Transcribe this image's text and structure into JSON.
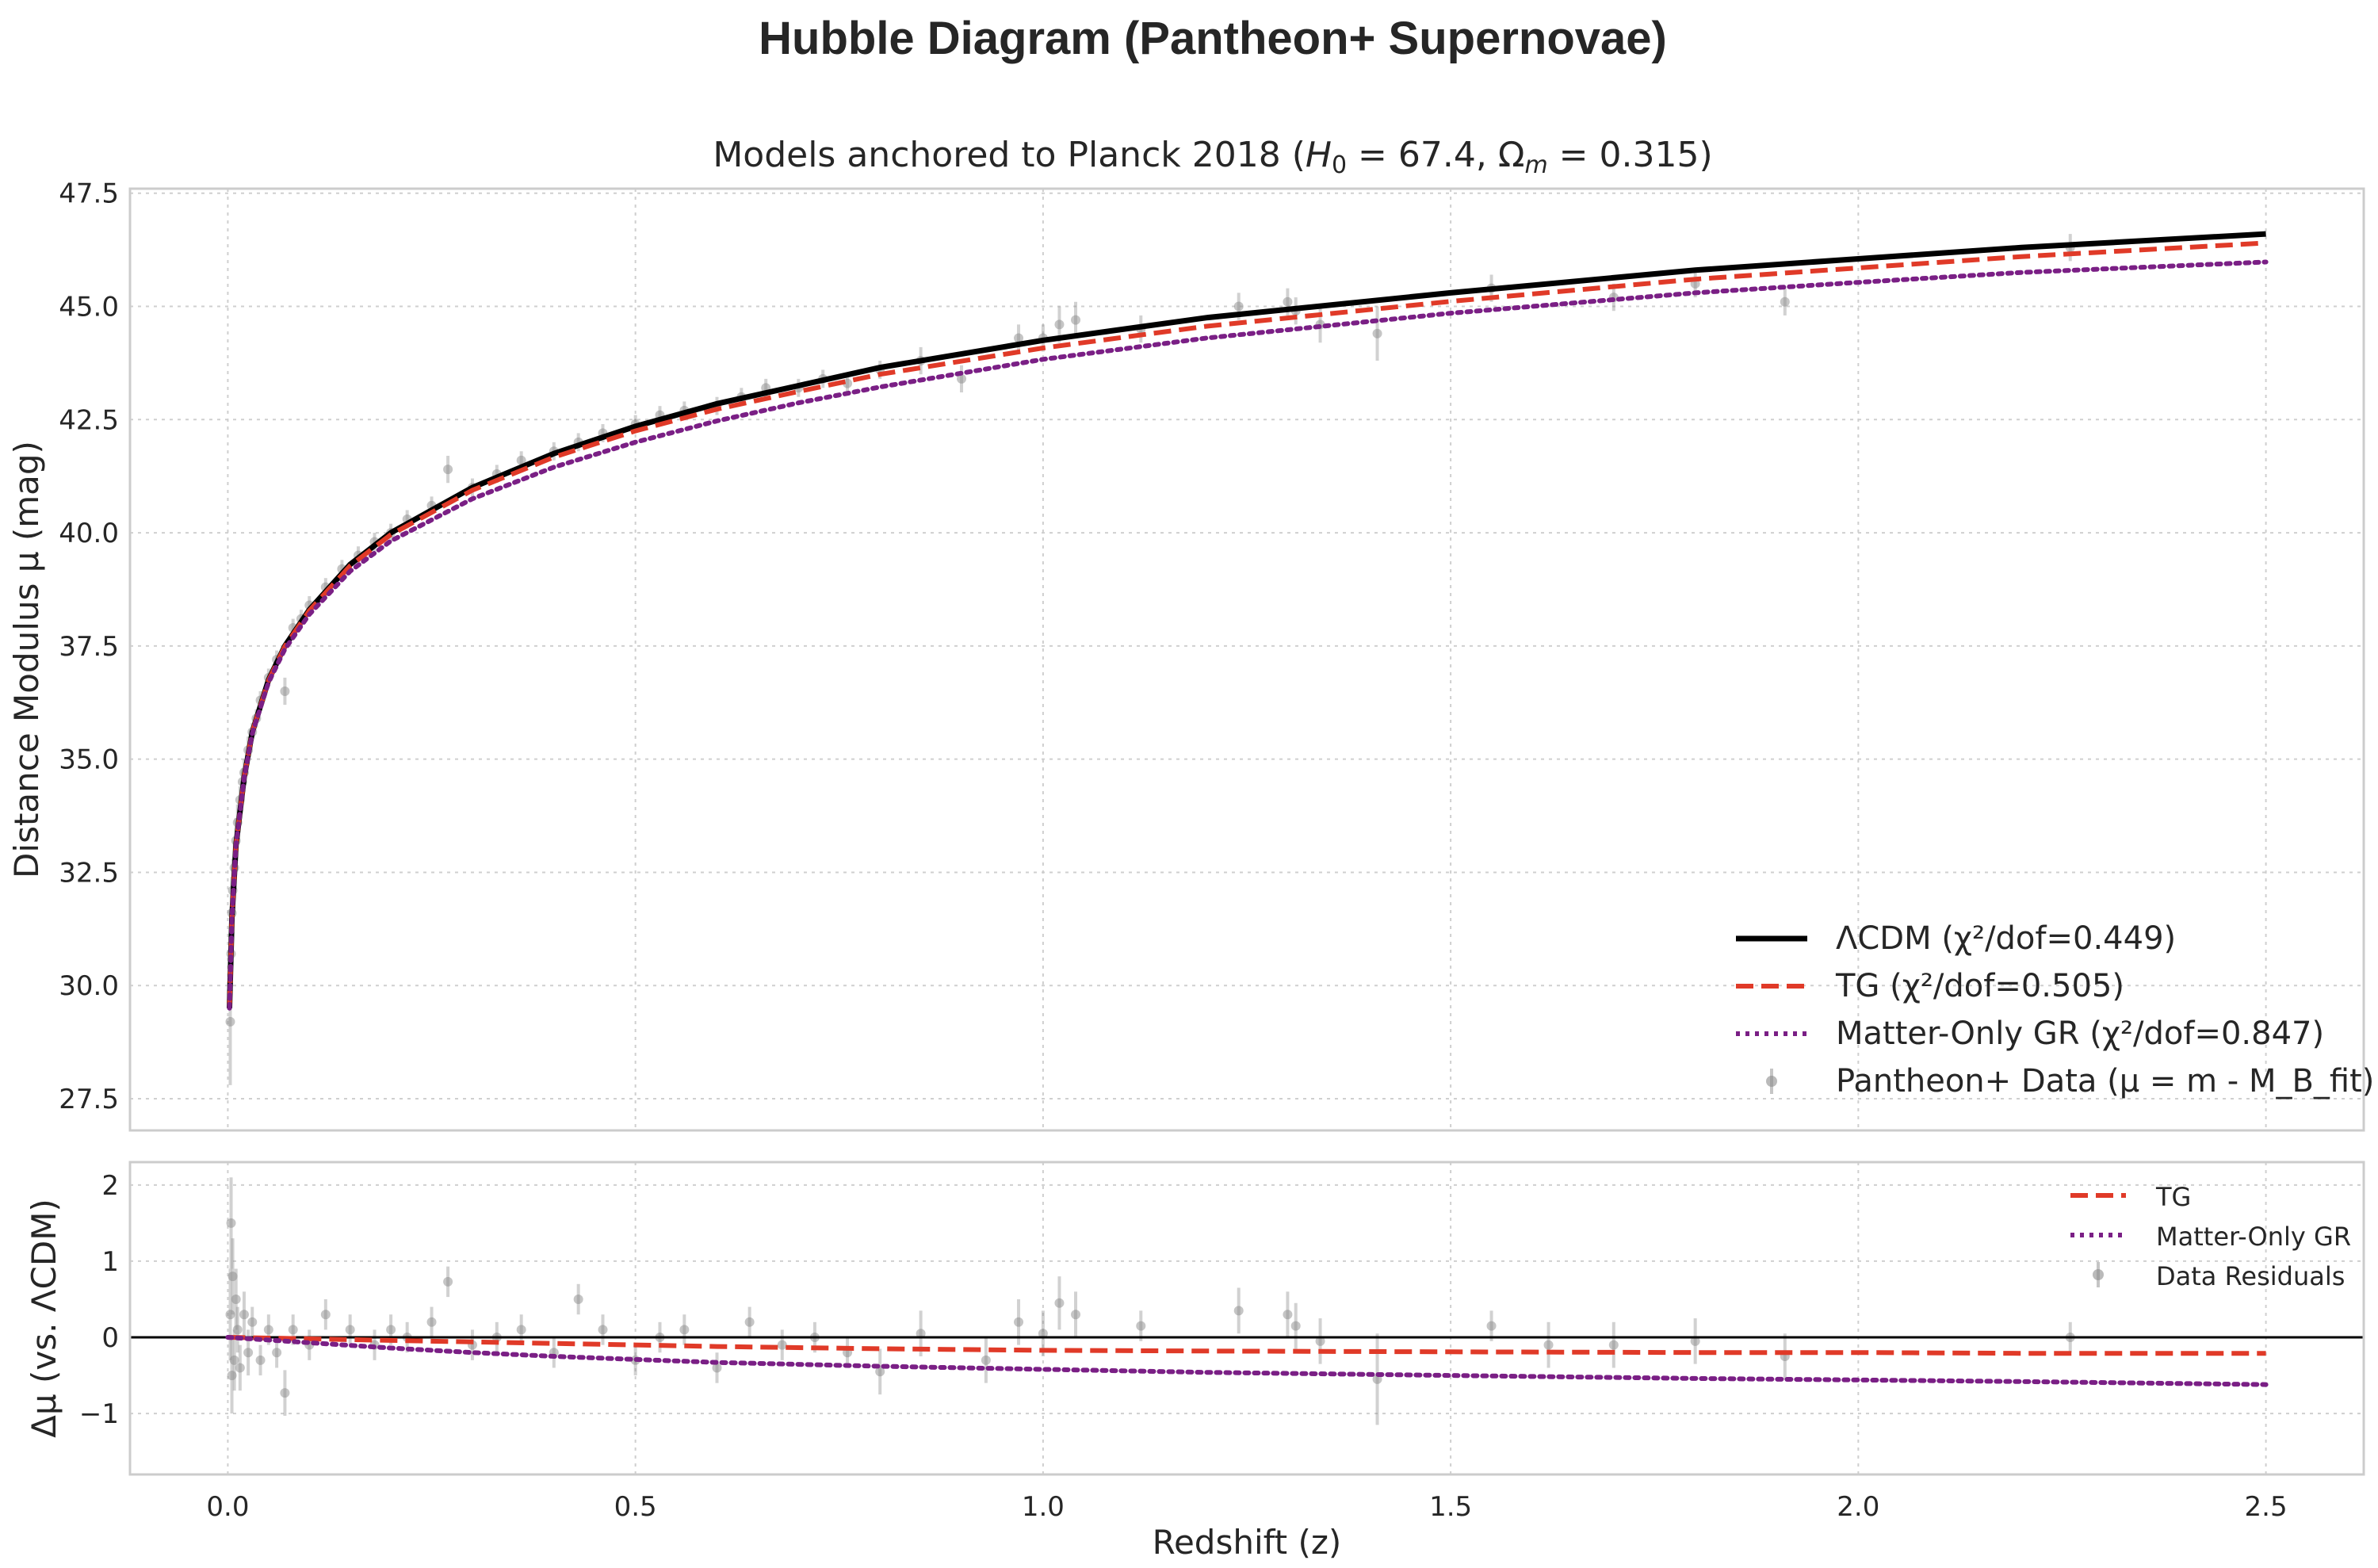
{
  "figure": {
    "suptitle": "Hubble Diagram (Pantheon+ Supernovae)",
    "subtitle_prefix": "Models anchored to Planck 2018 (",
    "subtitle_h0_symbol": "H",
    "subtitle_h0_sub": "0",
    "subtitle_h0_value": " = 67.4, ",
    "subtitle_om_symbol": "Ω",
    "subtitle_om_sub": "m",
    "subtitle_om_value": " = 0.315)"
  },
  "colors": {
    "lcdm": "#000000",
    "tg": "#e03a28",
    "matter": "#7a1f85",
    "data": "#8c8c8c",
    "grid": "#cfcfcf",
    "spine": "#cccccc"
  },
  "chart_data": [
    {
      "type": "line",
      "panel": "main",
      "ylabel": "Distance Modulus μ (mag)",
      "xlim": [
        -0.12,
        2.62
      ],
      "ylim": [
        26.8,
        47.6
      ],
      "xticks": [
        0.0,
        0.5,
        1.0,
        1.5,
        2.0,
        2.5
      ],
      "xticklabels": [
        "0.0",
        "0.5",
        "1.0",
        "1.5",
        "2.0",
        "2.5"
      ],
      "yticks": [
        27.5,
        30.0,
        32.5,
        35.0,
        37.5,
        40.0,
        42.5,
        45.0,
        47.5
      ],
      "yticklabels": [
        "27.5",
        "30.0",
        "32.5",
        "35.0",
        "37.5",
        "40.0",
        "42.5",
        "45.0",
        "47.5"
      ],
      "grid": true,
      "legend_position": "lower-right",
      "series": [
        {
          "name": "ΛCDM (χ²/dof=0.449)",
          "style": "solid",
          "color": "#000000",
          "x": [
            0.002,
            0.005,
            0.01,
            0.02,
            0.03,
            0.05,
            0.07,
            0.1,
            0.15,
            0.2,
            0.3,
            0.4,
            0.5,
            0.6,
            0.7,
            0.8,
            1.0,
            1.2,
            1.5,
            1.8,
            2.0,
            2.2,
            2.5
          ],
          "y": [
            29.5,
            31.5,
            33.1,
            34.6,
            35.6,
            36.75,
            37.5,
            38.3,
            39.3,
            40.0,
            41.0,
            41.75,
            42.35,
            42.85,
            43.25,
            43.65,
            44.25,
            44.75,
            45.3,
            45.8,
            46.05,
            46.3,
            46.6
          ]
        },
        {
          "name": "TG (χ²/dof=0.505)",
          "style": "dashed",
          "color": "#e03a28",
          "x": [
            0.002,
            0.005,
            0.01,
            0.02,
            0.03,
            0.05,
            0.07,
            0.1,
            0.15,
            0.2,
            0.3,
            0.4,
            0.5,
            0.6,
            0.7,
            0.8,
            1.0,
            1.2,
            1.5,
            1.8,
            2.0,
            2.2,
            2.5
          ],
          "y": [
            29.5,
            31.5,
            33.1,
            34.6,
            35.6,
            36.74,
            37.49,
            38.28,
            39.27,
            39.96,
            40.94,
            41.67,
            42.25,
            42.73,
            43.12,
            43.5,
            44.08,
            44.56,
            45.11,
            45.6,
            45.85,
            46.1,
            46.4
          ]
        },
        {
          "name": "Matter-Only GR (χ²/dof=0.847)",
          "style": "dotted",
          "color": "#7a1f85",
          "x": [
            0.002,
            0.005,
            0.01,
            0.02,
            0.03,
            0.05,
            0.07,
            0.1,
            0.15,
            0.2,
            0.3,
            0.4,
            0.5,
            0.6,
            0.7,
            0.8,
            1.0,
            1.2,
            1.5,
            1.8,
            2.0,
            2.2,
            2.5
          ],
          "y": [
            29.5,
            31.5,
            33.09,
            34.58,
            35.57,
            36.7,
            37.43,
            38.2,
            39.15,
            39.82,
            40.75,
            41.45,
            42.0,
            42.47,
            42.87,
            43.22,
            43.83,
            44.3,
            44.85,
            45.3,
            45.53,
            45.75,
            45.98
          ]
        }
      ],
      "data_series": {
        "name": "Pantheon+ Data (μ = m - M_B_fit)",
        "color": "#8c8c8c",
        "x": [
          0.003,
          0.004,
          0.005,
          0.006,
          0.008,
          0.01,
          0.012,
          0.015,
          0.018,
          0.02,
          0.025,
          0.03,
          0.035,
          0.04,
          0.05,
          0.06,
          0.07,
          0.08,
          0.09,
          0.1,
          0.12,
          0.14,
          0.16,
          0.18,
          0.2,
          0.22,
          0.25,
          0.27,
          0.3,
          0.33,
          0.36,
          0.4,
          0.43,
          0.46,
          0.5,
          0.53,
          0.56,
          0.6,
          0.63,
          0.66,
          0.7,
          0.73,
          0.76,
          0.8,
          0.85,
          0.9,
          0.97,
          1.0,
          1.02,
          1.04,
          1.12,
          1.24,
          1.3,
          1.31,
          1.34,
          1.41,
          1.55,
          1.7,
          1.8,
          1.91,
          2.26
        ],
        "y": [
          29.2,
          30.7,
          31.6,
          32.1,
          32.6,
          33.2,
          33.6,
          34.1,
          34.5,
          34.7,
          35.2,
          35.6,
          35.9,
          36.3,
          36.8,
          37.2,
          36.5,
          37.9,
          38.1,
          38.4,
          38.8,
          39.2,
          39.5,
          39.8,
          40.0,
          40.3,
          40.6,
          41.4,
          41.0,
          41.3,
          41.6,
          41.8,
          42.0,
          42.2,
          42.4,
          42.6,
          42.7,
          42.8,
          43.0,
          43.2,
          43.2,
          43.4,
          43.3,
          43.6,
          43.8,
          43.4,
          44.3,
          44.3,
          44.6,
          44.7,
          44.5,
          45.0,
          45.1,
          44.9,
          44.6,
          44.4,
          45.4,
          45.2,
          45.5,
          45.1,
          46.3
        ],
        "err": [
          1.4,
          0.9,
          0.8,
          0.7,
          0.6,
          0.5,
          0.4,
          0.3,
          0.3,
          0.3,
          0.3,
          0.2,
          0.2,
          0.2,
          0.2,
          0.2,
          0.3,
          0.2,
          0.2,
          0.2,
          0.2,
          0.2,
          0.2,
          0.2,
          0.2,
          0.2,
          0.2,
          0.3,
          0.2,
          0.2,
          0.2,
          0.2,
          0.2,
          0.2,
          0.2,
          0.2,
          0.2,
          0.2,
          0.2,
          0.2,
          0.2,
          0.2,
          0.2,
          0.2,
          0.3,
          0.3,
          0.3,
          0.3,
          0.4,
          0.4,
          0.3,
          0.3,
          0.3,
          0.3,
          0.4,
          0.6,
          0.3,
          0.3,
          0.3,
          0.3,
          0.3
        ]
      },
      "legend": [
        {
          "label": "ΛCDM (χ²/dof=0.449)",
          "style": "solid",
          "color": "#000000"
        },
        {
          "label": "TG (χ²/dof=0.505)",
          "style": "dashed",
          "color": "#e03a28"
        },
        {
          "label": "Matter-Only GR (χ²/dof=0.847)",
          "style": "dotted",
          "color": "#7a1f85"
        },
        {
          "label": "Pantheon+ Data (μ = m - M_B_fit)",
          "style": "errorbar",
          "color": "#8c8c8c"
        }
      ]
    },
    {
      "type": "line",
      "panel": "residual",
      "xlabel": "Redshift (z)",
      "ylabel": "Δμ (vs. ΛCDM)",
      "xlim": [
        -0.12,
        2.62
      ],
      "ylim": [
        -1.8,
        2.3
      ],
      "xticks": [
        0.0,
        0.5,
        1.0,
        1.5,
        2.0,
        2.5
      ],
      "xticklabels": [
        "0.0",
        "0.5",
        "1.0",
        "1.5",
        "2.0",
        "2.5"
      ],
      "yticks": [
        -1,
        0,
        1,
        2
      ],
      "yticklabels": [
        "−1",
        "0",
        "1",
        "2"
      ],
      "grid": true,
      "legend_position": "upper-right",
      "zero_line": 0,
      "series": [
        {
          "name": "TG",
          "style": "dashed",
          "color": "#e03a28",
          "x": [
            0.0,
            0.1,
            0.2,
            0.3,
            0.4,
            0.5,
            0.6,
            0.8,
            1.0,
            1.2,
            1.5,
            1.8,
            2.0,
            2.2,
            2.5
          ],
          "y": [
            0.0,
            -0.02,
            -0.04,
            -0.06,
            -0.08,
            -0.1,
            -0.12,
            -0.15,
            -0.17,
            -0.18,
            -0.19,
            -0.2,
            -0.2,
            -0.21,
            -0.21
          ]
        },
        {
          "name": "Matter-Only GR",
          "style": "dotted",
          "color": "#7a1f85",
          "x": [
            0.0,
            0.1,
            0.2,
            0.3,
            0.4,
            0.5,
            0.6,
            0.8,
            1.0,
            1.2,
            1.5,
            1.8,
            2.0,
            2.2,
            2.5
          ],
          "y": [
            0.0,
            -0.07,
            -0.14,
            -0.2,
            -0.25,
            -0.29,
            -0.33,
            -0.38,
            -0.42,
            -0.46,
            -0.5,
            -0.54,
            -0.56,
            -0.58,
            -0.62
          ]
        }
      ],
      "data_series": {
        "name": "Data Residuals",
        "color": "#8c8c8c",
        "x": [
          0.003,
          0.004,
          0.005,
          0.006,
          0.008,
          0.01,
          0.012,
          0.015,
          0.02,
          0.025,
          0.03,
          0.04,
          0.05,
          0.06,
          0.07,
          0.08,
          0.1,
          0.12,
          0.15,
          0.18,
          0.2,
          0.22,
          0.25,
          0.27,
          0.3,
          0.33,
          0.36,
          0.4,
          0.43,
          0.46,
          0.5,
          0.53,
          0.56,
          0.6,
          0.64,
          0.68,
          0.72,
          0.76,
          0.8,
          0.85,
          0.93,
          0.97,
          1.0,
          1.02,
          1.04,
          1.12,
          1.24,
          1.3,
          1.31,
          1.34,
          1.41,
          1.55,
          1.62,
          1.7,
          1.8,
          1.91,
          2.26
        ],
        "y": [
          0.3,
          1.5,
          -0.5,
          0.8,
          -0.3,
          0.5,
          0.1,
          -0.4,
          0.3,
          -0.2,
          0.2,
          -0.3,
          0.1,
          -0.2,
          -0.73,
          0.1,
          -0.1,
          0.3,
          0.1,
          -0.1,
          0.1,
          0.0,
          0.2,
          0.73,
          -0.1,
          0.0,
          0.1,
          -0.2,
          0.5,
          0.1,
          -0.3,
          0.0,
          0.1,
          -0.4,
          0.2,
          -0.1,
          0.0,
          -0.2,
          -0.45,
          0.05,
          -0.3,
          0.2,
          0.05,
          0.45,
          0.3,
          0.15,
          0.35,
          0.3,
          0.15,
          -0.05,
          -0.55,
          0.15,
          -0.1,
          -0.1,
          -0.05,
          -0.25,
          0.0
        ],
        "err": [
          0.6,
          0.6,
          0.5,
          0.5,
          0.4,
          0.4,
          0.3,
          0.3,
          0.3,
          0.3,
          0.2,
          0.2,
          0.2,
          0.2,
          0.3,
          0.2,
          0.2,
          0.2,
          0.2,
          0.2,
          0.2,
          0.2,
          0.2,
          0.2,
          0.2,
          0.2,
          0.2,
          0.2,
          0.2,
          0.2,
          0.2,
          0.2,
          0.2,
          0.2,
          0.2,
          0.2,
          0.2,
          0.2,
          0.3,
          0.3,
          0.3,
          0.3,
          0.3,
          0.35,
          0.3,
          0.2,
          0.3,
          0.3,
          0.3,
          0.3,
          0.6,
          0.2,
          0.3,
          0.3,
          0.3,
          0.3,
          0.2
        ]
      },
      "legend": [
        {
          "label": "TG",
          "style": "dashed",
          "color": "#e03a28"
        },
        {
          "label": "Matter-Only GR",
          "style": "dotted",
          "color": "#7a1f85"
        },
        {
          "label": "Data Residuals",
          "style": "errorbar",
          "color": "#8c8c8c"
        }
      ]
    }
  ]
}
